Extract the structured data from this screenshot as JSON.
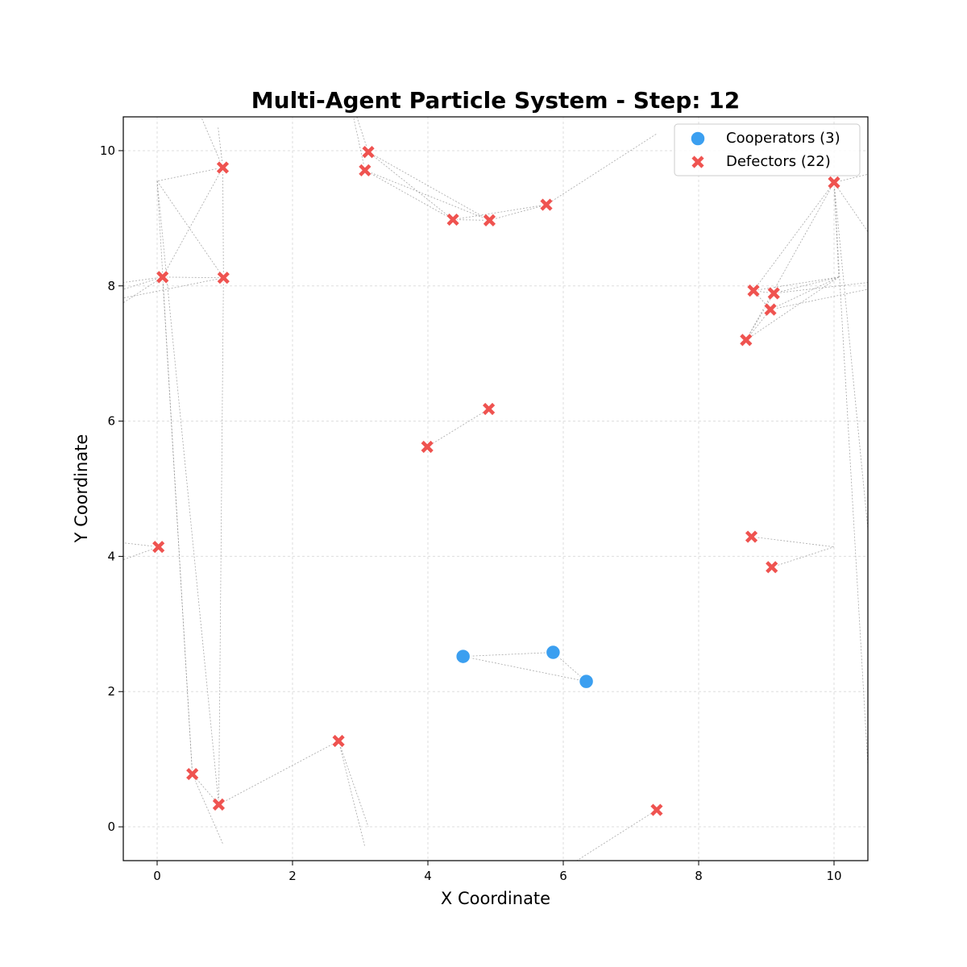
{
  "chart_data": {
    "type": "scatter",
    "title": "Multi-Agent Particle System - Step: 12",
    "xlabel": "X Coordinate",
    "ylabel": "Y Coordinate",
    "xlim": [
      -0.5,
      10.5
    ],
    "ylim": [
      -0.5,
      10.5
    ],
    "xticks": [
      0,
      2,
      4,
      6,
      8,
      10
    ],
    "yticks": [
      0,
      2,
      4,
      6,
      8,
      10
    ],
    "grid": true,
    "legend_position": "top-right",
    "series": [
      {
        "name": "Cooperators (3)",
        "marker": "circle",
        "color": "#3b9ff0",
        "points": [
          [
            4.52,
            2.52
          ],
          [
            5.85,
            2.58
          ],
          [
            6.34,
            2.15
          ]
        ]
      },
      {
        "name": "Defectors (22)",
        "marker": "x",
        "color": "#ef5350",
        "points": [
          [
            0.97,
            9.75
          ],
          [
            0.08,
            8.13
          ],
          [
            0.98,
            8.12
          ],
          [
            3.12,
            9.98
          ],
          [
            3.07,
            9.71
          ],
          [
            4.37,
            8.98
          ],
          [
            4.91,
            8.97
          ],
          [
            5.75,
            9.2
          ],
          [
            10.0,
            9.53
          ],
          [
            8.81,
            7.93
          ],
          [
            9.11,
            7.89
          ],
          [
            9.06,
            7.65
          ],
          [
            8.7,
            7.2
          ],
          [
            4.9,
            6.18
          ],
          [
            3.99,
            5.62
          ],
          [
            0.02,
            4.14
          ],
          [
            8.78,
            4.29
          ],
          [
            9.08,
            3.84
          ],
          [
            2.68,
            1.27
          ],
          [
            0.52,
            0.78
          ],
          [
            0.91,
            0.33
          ],
          [
            7.38,
            0.25
          ]
        ]
      }
    ],
    "connections": [
      [
        [
          0.97,
          9.75
        ],
        [
          0.0,
          9.55
        ]
      ],
      [
        [
          0.97,
          9.75
        ],
        [
          0.08,
          8.13
        ]
      ],
      [
        [
          0.97,
          9.75
        ],
        [
          0.98,
          8.12
        ]
      ],
      [
        [
          0.97,
          9.75
        ],
        [
          0.9,
          10.35
        ]
      ],
      [
        [
          0.97,
          9.75
        ],
        [
          0.65,
          10.5
        ]
      ],
      [
        [
          0.0,
          9.55
        ],
        [
          0.98,
          8.12
        ]
      ],
      [
        [
          0.0,
          9.55
        ],
        [
          0.52,
          0.78
        ]
      ],
      [
        [
          0.0,
          9.55
        ],
        [
          0.91,
          0.33
        ]
      ],
      [
        [
          0.08,
          8.13
        ],
        [
          0.98,
          8.12
        ]
      ],
      [
        [
          0.08,
          8.13
        ],
        [
          -0.5,
          8.05
        ]
      ],
      [
        [
          0.08,
          8.13
        ],
        [
          -0.5,
          7.95
        ]
      ],
      [
        [
          0.08,
          8.13
        ],
        [
          -0.5,
          7.75
        ]
      ],
      [
        [
          0.08,
          8.13
        ],
        [
          0.52,
          0.78
        ]
      ],
      [
        [
          0.98,
          8.12
        ],
        [
          -0.5,
          7.82
        ]
      ],
      [
        [
          3.12,
          9.98
        ],
        [
          2.95,
          10.5
        ]
      ],
      [
        [
          3.07,
          9.71
        ],
        [
          2.9,
          10.5
        ]
      ],
      [
        [
          3.12,
          9.98
        ],
        [
          4.37,
          8.98
        ]
      ],
      [
        [
          3.12,
          9.98
        ],
        [
          4.91,
          8.97
        ]
      ],
      [
        [
          3.07,
          9.71
        ],
        [
          4.37,
          8.98
        ]
      ],
      [
        [
          3.07,
          9.71
        ],
        [
          4.91,
          8.97
        ]
      ],
      [
        [
          4.37,
          8.98
        ],
        [
          5.75,
          9.2
        ]
      ],
      [
        [
          4.91,
          8.97
        ],
        [
          5.75,
          9.2
        ]
      ],
      [
        [
          4.37,
          8.98
        ],
        [
          4.91,
          8.97
        ]
      ],
      [
        [
          5.75,
          9.2
        ],
        [
          7.38,
          10.25
        ]
      ],
      [
        [
          10.0,
          9.53
        ],
        [
          10.5,
          9.65
        ]
      ],
      [
        [
          10.0,
          9.53
        ],
        [
          10.5,
          8.8
        ]
      ],
      [
        [
          10.0,
          9.53
        ],
        [
          8.81,
          7.93
        ]
      ],
      [
        [
          10.0,
          9.53
        ],
        [
          8.7,
          7.2
        ]
      ],
      [
        [
          10.0,
          9.53
        ],
        [
          10.07,
          8.13
        ]
      ],
      [
        [
          10.0,
          9.53
        ],
        [
          10.5,
          4.4
        ]
      ],
      [
        [
          10.0,
          9.53
        ],
        [
          10.5,
          0.9
        ]
      ],
      [
        [
          10.07,
          8.13
        ],
        [
          8.81,
          7.93
        ]
      ],
      [
        [
          10.07,
          8.13
        ],
        [
          9.11,
          7.89
        ]
      ],
      [
        [
          10.07,
          8.13
        ],
        [
          9.06,
          7.65
        ]
      ],
      [
        [
          10.07,
          8.13
        ],
        [
          8.7,
          7.2
        ]
      ],
      [
        [
          8.81,
          7.93
        ],
        [
          9.11,
          7.89
        ]
      ],
      [
        [
          8.81,
          7.93
        ],
        [
          9.06,
          7.65
        ]
      ],
      [
        [
          9.11,
          7.89
        ],
        [
          8.7,
          7.2
        ]
      ],
      [
        [
          9.06,
          7.65
        ],
        [
          8.7,
          7.2
        ]
      ],
      [
        [
          9.11,
          7.89
        ],
        [
          10.5,
          8.05
        ]
      ],
      [
        [
          9.06,
          7.65
        ],
        [
          10.5,
          7.95
        ]
      ],
      [
        [
          4.9,
          6.18
        ],
        [
          3.99,
          5.62
        ]
      ],
      [
        [
          0.02,
          4.14
        ],
        [
          -0.5,
          4.2
        ]
      ],
      [
        [
          0.02,
          4.14
        ],
        [
          -0.5,
          3.95
        ]
      ],
      [
        [
          8.78,
          4.29
        ],
        [
          10.0,
          4.14
        ]
      ],
      [
        [
          9.08,
          3.84
        ],
        [
          10.0,
          4.14
        ]
      ],
      [
        [
          4.52,
          2.52
        ],
        [
          5.85,
          2.58
        ]
      ],
      [
        [
          4.52,
          2.52
        ],
        [
          6.34,
          2.15
        ]
      ],
      [
        [
          5.85,
          2.58
        ],
        [
          6.34,
          2.15
        ]
      ],
      [
        [
          2.68,
          1.27
        ],
        [
          0.91,
          0.33
        ]
      ],
      [
        [
          2.68,
          1.27
        ],
        [
          3.07,
          -0.3
        ]
      ],
      [
        [
          2.68,
          1.27
        ],
        [
          3.12,
          0.0
        ]
      ],
      [
        [
          0.52,
          0.78
        ],
        [
          0.91,
          0.33
        ]
      ],
      [
        [
          0.52,
          0.78
        ],
        [
          0.97,
          -0.25
        ]
      ],
      [
        [
          0.91,
          0.33
        ],
        [
          0.98,
          8.12
        ]
      ],
      [
        [
          7.38,
          0.25
        ],
        [
          6.2,
          -0.5
        ]
      ]
    ]
  }
}
